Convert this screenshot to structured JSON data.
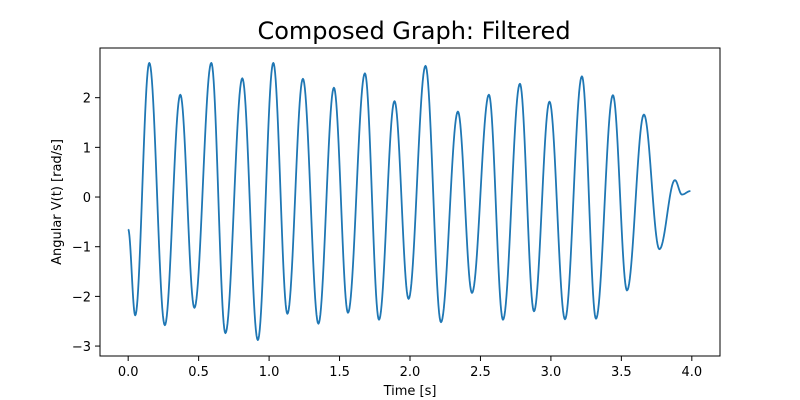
{
  "chart_data": {
    "type": "line",
    "title": "Composed Graph: Filtered",
    "xlabel": "Time [s]",
    "ylabel": "Angular V(t) [rad/s]",
    "xlim": [
      -0.2,
      4.2
    ],
    "ylim": [
      -3.2,
      3.0
    ],
    "xticks": [
      0.0,
      0.5,
      1.0,
      1.5,
      2.0,
      2.5,
      3.0,
      3.5,
      4.0
    ],
    "xtick_labels": [
      "0.0",
      "0.5",
      "1.0",
      "1.5",
      "2.0",
      "2.5",
      "3.0",
      "3.5",
      "4.0"
    ],
    "yticks": [
      -3,
      -2,
      -1,
      0,
      1,
      2
    ],
    "ytick_labels": [
      "−3",
      "−2",
      "−1",
      "0",
      "1",
      "2"
    ],
    "grid": false,
    "series": [
      {
        "color": "#1f77b4",
        "extrema": [
          [
            0.0,
            -0.65
          ],
          [
            0.05,
            -2.38
          ],
          [
            0.15,
            2.7
          ],
          [
            0.26,
            -2.58
          ],
          [
            0.37,
            2.06
          ],
          [
            0.47,
            -2.23
          ],
          [
            0.59,
            2.7
          ],
          [
            0.69,
            -2.74
          ],
          [
            0.81,
            2.39
          ],
          [
            0.92,
            -2.88
          ],
          [
            1.03,
            2.7
          ],
          [
            1.13,
            -2.35
          ],
          [
            1.24,
            2.38
          ],
          [
            1.35,
            -2.55
          ],
          [
            1.46,
            2.2
          ],
          [
            1.56,
            -2.33
          ],
          [
            1.68,
            2.49
          ],
          [
            1.78,
            -2.47
          ],
          [
            1.89,
            1.93
          ],
          [
            1.99,
            -2.05
          ],
          [
            2.11,
            2.64
          ],
          [
            2.22,
            -2.52
          ],
          [
            2.34,
            1.72
          ],
          [
            2.44,
            -1.93
          ],
          [
            2.56,
            2.06
          ],
          [
            2.66,
            -2.47
          ],
          [
            2.78,
            2.28
          ],
          [
            2.88,
            -2.3
          ],
          [
            2.99,
            1.92
          ],
          [
            3.1,
            -2.46
          ],
          [
            3.22,
            2.43
          ],
          [
            3.32,
            -2.45
          ],
          [
            3.44,
            2.05
          ],
          [
            3.54,
            -1.88
          ],
          [
            3.66,
            1.66
          ],
          [
            3.77,
            -1.05
          ],
          [
            3.88,
            0.34
          ],
          [
            3.93,
            0.05
          ],
          [
            3.99,
            0.12
          ]
        ]
      }
    ]
  }
}
